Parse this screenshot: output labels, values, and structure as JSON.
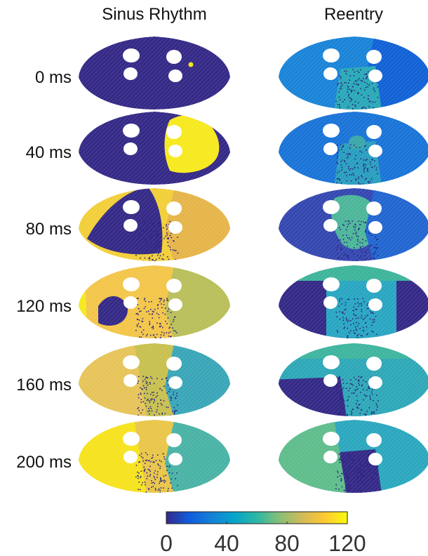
{
  "columns": [
    "Sinus Rhythm",
    "Reentry"
  ],
  "rows": [
    {
      "label": "0 ms",
      "sinus": {
        "base": "#352a87",
        "fields": [],
        "spot": "#f3e51a",
        "dots": false
      },
      "reentry": {
        "base": "#1a84d8",
        "fields": [
          {
            "color": "#1262d6",
            "shape": "right"
          },
          {
            "color": "#2aa9b8",
            "shape": "center-lower"
          }
        ],
        "dots": true
      }
    },
    {
      "label": "40 ms",
      "sinus": {
        "base": "#352a87",
        "fields": [
          {
            "color": "#f6e91f",
            "shape": "right-blob"
          }
        ],
        "dots": false
      },
      "reentry": {
        "base": "#1a74d8",
        "fields": [
          {
            "color": "#2a9fbf",
            "shape": "center-lower"
          },
          {
            "color": "#3aa7a8",
            "shape": "center-small"
          }
        ],
        "dots": true
      }
    },
    {
      "label": "80 ms",
      "sinus": {
        "base": "#f2cf3a",
        "fields": [
          {
            "color": "#352a87",
            "shape": "left-wedge"
          },
          {
            "color": "#e6b54a",
            "shape": "right"
          }
        ],
        "dots": true
      },
      "reentry": {
        "base": "#3548b0",
        "fields": [
          {
            "color": "#4db69a",
            "shape": "center-blob"
          },
          {
            "color": "#2266d0",
            "shape": "right"
          }
        ],
        "dots": true
      }
    },
    {
      "label": "120 ms",
      "sinus": {
        "base": "#f3c64a",
        "fields": [
          {
            "color": "#352a87",
            "shape": "left-hole"
          },
          {
            "color": "#f6e91f",
            "shape": "left-edge"
          },
          {
            "color": "#b9bf5a",
            "shape": "right"
          }
        ],
        "dots": true
      },
      "reentry": {
        "base": "#352a87",
        "fields": [
          {
            "color": "#2aa6c2",
            "shape": "center-wide"
          },
          {
            "color": "#3eb59b",
            "shape": "top"
          }
        ],
        "dots": true
      }
    },
    {
      "label": "160 ms",
      "sinus": {
        "base": "#c8c050",
        "fields": [
          {
            "color": "#e7c45a",
            "shape": "left"
          },
          {
            "color": "#3aa6b8",
            "shape": "right"
          }
        ],
        "dots": true
      },
      "reentry": {
        "base": "#2fa8b8",
        "fields": [
          {
            "color": "#352a87",
            "shape": "bottom"
          },
          {
            "color": "#3fb59f",
            "shape": "top"
          }
        ],
        "dots": true
      }
    },
    {
      "label": "200 ms",
      "sinus": {
        "base": "#e9c64a",
        "fields": [
          {
            "color": "#f6e31f",
            "shape": "left"
          },
          {
            "color": "#4ab3a6",
            "shape": "right"
          }
        ],
        "dots": true
      },
      "reentry": {
        "base": "#2ca8be",
        "fields": [
          {
            "color": "#352a87",
            "shape": "center-lower"
          },
          {
            "color": "#60bd8c",
            "shape": "left"
          }
        ],
        "dots": true
      }
    }
  ],
  "colorbar": {
    "ticks": [
      "0",
      "40",
      "80",
      "120"
    ],
    "min": 0,
    "max": 120,
    "colors": [
      "#352a87",
      "#0f5cdd",
      "#1481d6",
      "#06a4ca",
      "#2eb7a4",
      "#87bf77",
      "#d1bb59",
      "#fec832",
      "#f9fb0e"
    ]
  }
}
